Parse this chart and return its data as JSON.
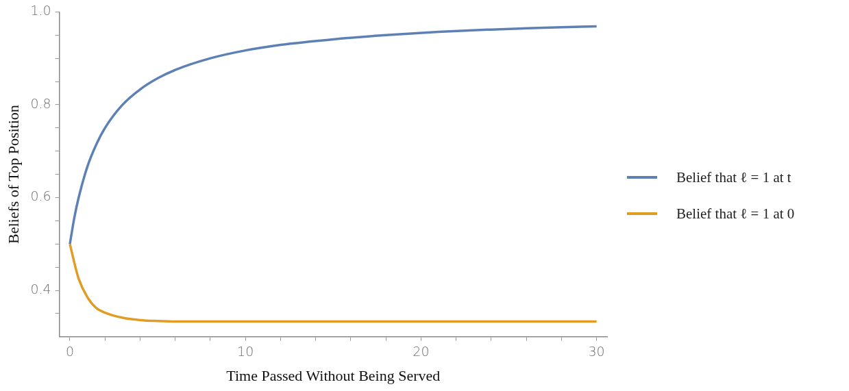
{
  "chart_data": {
    "type": "line",
    "xlabel": "Time Passed Without Being Served",
    "ylabel": "Beliefs of Top Position",
    "xlim": [
      -0.6,
      30.6
    ],
    "ylim": [
      0.3,
      1.0
    ],
    "xticks": [
      0,
      {
        "value": 2,
        "label": null
      },
      {
        "value": 4,
        "label": null
      },
      {
        "value": 6,
        "label": null
      },
      {
        "value": 8,
        "label": null
      },
      10,
      {
        "value": 12,
        "label": null
      },
      {
        "value": 14,
        "label": null
      },
      {
        "value": 16,
        "label": null
      },
      {
        "value": 18,
        "label": null
      },
      20,
      {
        "value": 22,
        "label": null
      },
      {
        "value": 24,
        "label": null
      },
      {
        "value": 26,
        "label": null
      },
      {
        "value": 28,
        "label": null
      },
      30
    ],
    "yticks": [
      {
        "value": 0.35,
        "label": null
      },
      0.4,
      {
        "value": 0.45,
        "label": null
      },
      {
        "value": 0.5,
        "label": null
      },
      {
        "value": 0.55,
        "label": null
      },
      0.6,
      {
        "value": 0.65,
        "label": null
      },
      {
        "value": 0.7,
        "label": null
      },
      {
        "value": 0.75,
        "label": null
      },
      0.8,
      {
        "value": 0.85,
        "label": null
      },
      {
        "value": 0.9,
        "label": null
      },
      {
        "value": 0.95,
        "label": null
      },
      {
        "value": 1.0,
        "label": "1.0"
      }
    ],
    "grid": false,
    "legend": "right",
    "marker": "none",
    "line_style": "solid",
    "series": [
      {
        "name": "Belief that ℓ = 1 at t",
        "color": "#5e81b5",
        "x": [
          0,
          0.25,
          0.5,
          1,
          1.5,
          2,
          3,
          4,
          5,
          6,
          8,
          10,
          12,
          15,
          18,
          21,
          24,
          27,
          30
        ],
        "values": [
          0.5,
          0.556,
          0.6,
          0.667,
          0.714,
          0.75,
          0.8,
          0.833,
          0.857,
          0.875,
          0.9,
          0.917,
          0.929,
          0.941,
          0.95,
          0.957,
          0.962,
          0.966,
          0.969
        ]
      },
      {
        "name": "Belief that ℓ = 1 at 0",
        "color": "#e19c24",
        "x": [
          0,
          0.25,
          0.5,
          1,
          1.5,
          2,
          3,
          4,
          5,
          6,
          8,
          30
        ],
        "values": [
          0.5,
          0.46,
          0.425,
          0.385,
          0.362,
          0.352,
          0.341,
          0.336,
          0.334,
          0.333,
          0.333,
          0.333
        ]
      }
    ]
  }
}
